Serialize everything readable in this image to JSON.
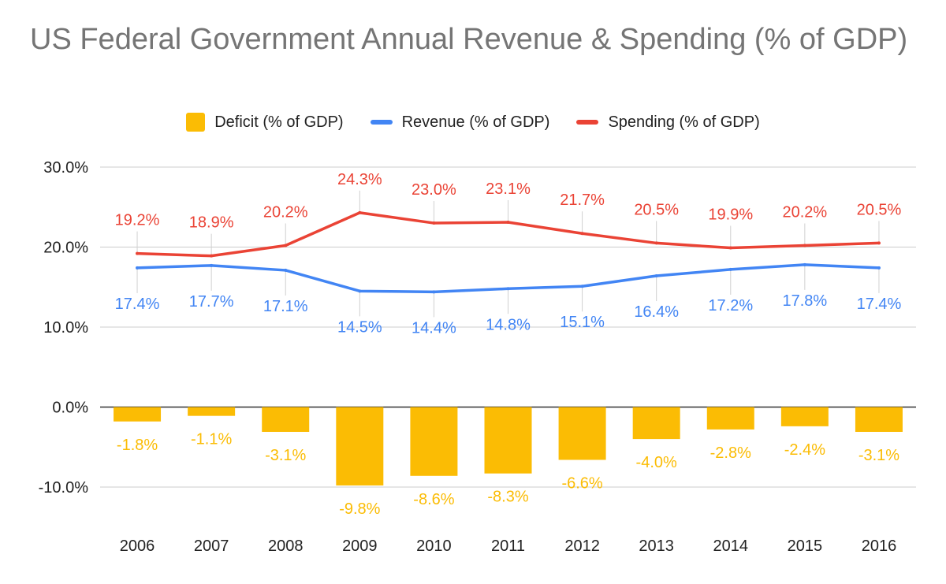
{
  "title": "US Federal Government Annual Revenue & Spending (% of GDP)",
  "legend": {
    "deficit": "Deficit (% of GDP)",
    "revenue": "Revenue (% of GDP)",
    "spending": "Spending (% of GDP)"
  },
  "colors": {
    "deficit": "#fbbc04",
    "revenue": "#4285f4",
    "spending": "#ea4335",
    "title": "#757575",
    "grid": "#cccccc",
    "zero_line": "#333333",
    "axis_text": "#222222"
  },
  "chart_data": {
    "type": "bar",
    "title": "US Federal Government Annual Revenue & Spending (% of GDP)",
    "xlabel": "",
    "ylabel": "",
    "categories": [
      "2006",
      "2007",
      "2008",
      "2009",
      "2010",
      "2011",
      "2012",
      "2013",
      "2014",
      "2015",
      "2016"
    ],
    "ylim": [
      -10,
      30
    ],
    "yticks": [
      30,
      20,
      10,
      0,
      -10
    ],
    "ytick_labels": [
      "30.0%",
      "20.0%",
      "10.0%",
      "0.0%",
      "-10.0%"
    ],
    "grid": true,
    "legend_position": "top",
    "series": [
      {
        "key": "deficit",
        "name": "Deficit (% of GDP)",
        "type": "bar",
        "values": [
          -1.8,
          -1.1,
          -3.1,
          -9.8,
          -8.6,
          -8.3,
          -6.6,
          -4.0,
          -2.8,
          -2.4,
          -3.1
        ],
        "labels": [
          "-1.8%",
          "-1.1%",
          "-3.1%",
          "-9.8%",
          "-8.6%",
          "-8.3%",
          "-6.6%",
          "-4.0%",
          "-2.8%",
          "-2.4%",
          "-3.1%"
        ]
      },
      {
        "key": "revenue",
        "name": "Revenue (% of GDP)",
        "type": "line",
        "values": [
          17.4,
          17.7,
          17.1,
          14.5,
          14.4,
          14.8,
          15.1,
          16.4,
          17.2,
          17.8,
          17.4
        ],
        "labels": [
          "17.4%",
          "17.7%",
          "17.1%",
          "14.5%",
          "14.4%",
          "14.8%",
          "15.1%",
          "16.4%",
          "17.2%",
          "17.8%",
          "17.4%"
        ]
      },
      {
        "key": "spending",
        "name": "Spending (% of GDP)",
        "type": "line",
        "values": [
          19.2,
          18.9,
          20.2,
          24.3,
          23.0,
          23.1,
          21.7,
          20.5,
          19.9,
          20.2,
          20.5
        ],
        "labels": [
          "19.2%",
          "18.9%",
          "20.2%",
          "24.3%",
          "23.0%",
          "23.1%",
          "21.7%",
          "20.5%",
          "19.9%",
          "20.2%",
          "20.5%"
        ]
      }
    ]
  }
}
